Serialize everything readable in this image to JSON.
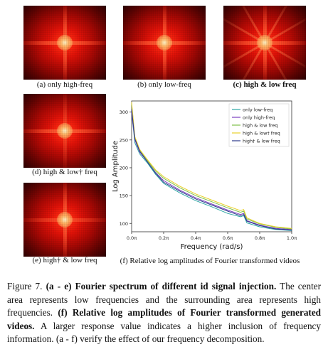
{
  "panels": {
    "a": {
      "label": "(a) only high-freq"
    },
    "b": {
      "label": "(b) only low-freq"
    },
    "c": {
      "label": "(c) high & low freq"
    },
    "d": {
      "label": "(d) high & low† freq"
    },
    "e": {
      "label": "(e) high† & low freq"
    },
    "f": {
      "label": "(f) Relative log amplitudes of Fourier transformed videos"
    }
  },
  "chart_data": {
    "type": "line",
    "xlabel": "Frequency (rad/s)",
    "ylabel": "Log Amplitude",
    "xlim": [
      0,
      1
    ],
    "ylim": [
      85,
      320
    ],
    "xticks": [
      {
        "v": 0,
        "label": "0.0π"
      },
      {
        "v": 0.2,
        "label": "0.2π"
      },
      {
        "v": 0.4,
        "label": "0.4π"
      },
      {
        "v": 0.6,
        "label": "0.6π"
      },
      {
        "v": 0.8,
        "label": "0.8π"
      },
      {
        "v": 1.0,
        "label": "1.0π"
      }
    ],
    "yticks": [
      100,
      150,
      200,
      250,
      300
    ],
    "x": [
      0.0,
      0.02,
      0.05,
      0.1,
      0.15,
      0.2,
      0.3,
      0.4,
      0.5,
      0.6,
      0.68,
      0.7,
      0.72,
      0.8,
      0.9,
      1.0
    ],
    "legend_position": "top-right",
    "series": [
      {
        "name": "only low-freq",
        "color": "#2ca6a4",
        "values": [
          300,
          245,
          225,
          208,
          188,
          172,
          155,
          141,
          130,
          118,
          112,
          114,
          101,
          94,
          89,
          87
        ]
      },
      {
        "name": "only high-freq",
        "color": "#7b3fbf",
        "values": [
          300,
          250,
          228,
          210,
          191,
          177,
          160,
          146,
          135,
          124,
          116,
          118,
          105,
          97,
          91,
          89
        ]
      },
      {
        "name": "high & low freq",
        "color": "#7fbf4a",
        "values": [
          315,
          255,
          232,
          212,
          194,
          181,
          164,
          150,
          139,
          128,
          120,
          122,
          108,
          99,
          93,
          90
        ]
      },
      {
        "name": "high & low† freq",
        "color": "#e8d12a",
        "values": [
          318,
          256,
          233,
          214,
          196,
          184,
          167,
          153,
          142,
          131,
          123,
          125,
          110,
          100,
          94,
          91
        ]
      },
      {
        "name": "high† & low freq",
        "color": "#2d3a8c",
        "values": [
          305,
          252,
          230,
          210,
          190,
          174,
          158,
          144,
          133,
          122,
          114,
          116,
          104,
          96,
          90,
          88
        ]
      }
    ]
  },
  "caption": {
    "prefix": "Figure 7.",
    "bold1": "(a - e) Fourier spectrum of different id signal injection.",
    "text1": "The center area represents low frequencies and the surrounding area represents high frequencies.",
    "bold2": "(f) Relative log amplitudes of Fourier transformed generated videos.",
    "text2": "A larger response value indicates a higher inclusion of frequency information. (a - f) verify the effect of our frequency decomposition."
  }
}
